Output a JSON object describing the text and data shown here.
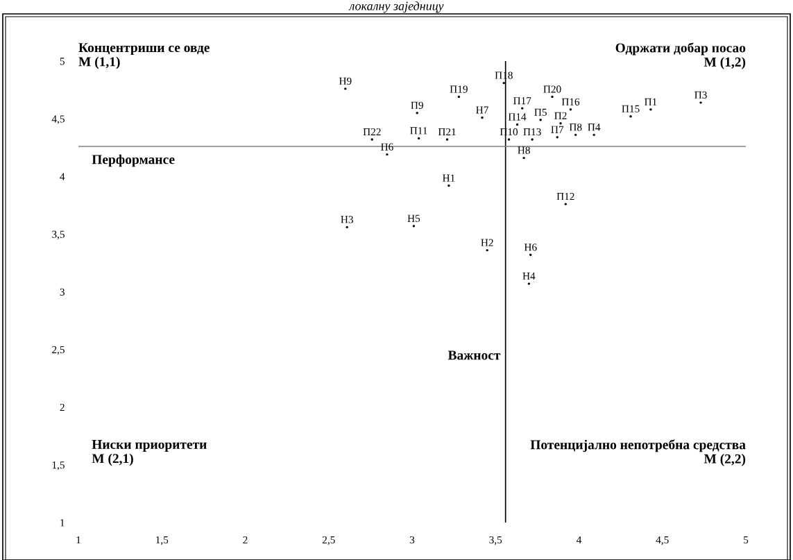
{
  "chart_data": {
    "type": "scatter",
    "title": "локалну заједницу",
    "x": [
      2.6,
      3.55,
      3.28,
      3.03,
      3.42,
      3.66,
      3.84,
      3.95,
      3.77,
      3.63,
      3.89,
      2.76,
      3.04,
      3.21,
      3.58,
      3.72,
      3.87,
      3.98,
      4.09,
      2.85,
      3.67,
      4.31,
      4.43,
      4.73,
      3.22,
      3.92,
      2.61,
      3.01,
      3.45,
      3.71,
      3.7
    ],
    "series": [
      {
        "color": "#000000",
        "marker": "circle",
        "values": [
          4.76,
          4.81,
          4.69,
          4.55,
          4.51,
          4.59,
          4.69,
          4.58,
          4.49,
          4.45,
          4.46,
          4.32,
          4.33,
          4.32,
          4.32,
          4.32,
          4.34,
          4.36,
          4.36,
          4.19,
          4.16,
          4.52,
          4.58,
          4.64,
          3.92,
          3.76,
          3.56,
          3.57,
          3.36,
          3.32,
          3.07
        ],
        "value_labels": [
          "Н9",
          "П18",
          "П19",
          "П9",
          "Н7",
          "П17",
          "П20",
          "П16",
          "П5",
          "П14",
          "П2",
          "П22",
          "П11",
          "П21",
          "П10",
          "П13",
          "П7",
          "П8",
          "П4",
          "П6",
          "Н8",
          "П15",
          "П1",
          "П3",
          "Н1",
          "П12",
          "Н3",
          "Н5",
          "Н2",
          "Н6",
          "Н4"
        ]
      }
    ],
    "xlim": [
      1,
      5
    ],
    "ylim": [
      1,
      5
    ],
    "xticks": [
      1,
      {
        "value": 1.5,
        "label": "1,5"
      },
      2,
      {
        "value": 2.5,
        "label": "2,5"
      },
      3,
      {
        "value": 3.5,
        "label": "3,5"
      },
      4,
      {
        "value": 4.5,
        "label": "4,5"
      },
      5
    ],
    "yticks": [
      1,
      {
        "value": 1.5,
        "label": "1,5"
      },
      2,
      {
        "value": 2.5,
        "label": "2,5"
      },
      3,
      {
        "value": 3.5,
        "label": "3,5"
      },
      4,
      {
        "value": 4.5,
        "label": "4,5"
      },
      5
    ],
    "ref_lines": [
      {
        "axis": "x",
        "value": 3.56,
        "label": "Важност",
        "color": "#000000"
      },
      {
        "axis": "y",
        "value": 4.26,
        "label": "Перформансе",
        "color": "#808080"
      }
    ],
    "annotations": [
      "Концентриши се овде\nМ (1,1)",
      "Одржати добар посао\nМ (1,2)",
      "Ниски приоритети\nМ (2,1)",
      "Потенцијално непотребна средства\nМ (2,2)"
    ],
    "grid": false,
    "legend": false
  }
}
